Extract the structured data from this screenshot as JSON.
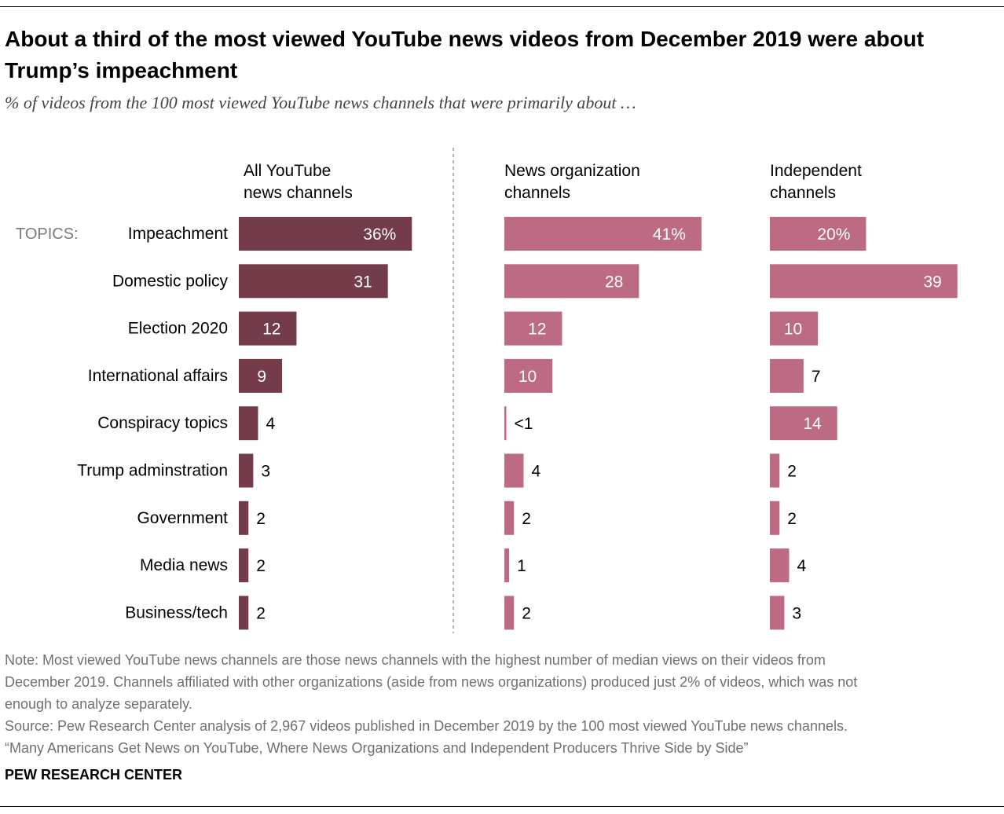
{
  "title": "About a third of the most viewed YouTube news videos from December 2019 were about Trump’s impeachment",
  "subtitle": "% of videos from the 100 most viewed YouTube news channels that were primarily about …",
  "topics_label": "TOPICS:",
  "colors": {
    "all": "#733c48",
    "group": "#bd6a83",
    "divider": "#999999",
    "label_on_bar": "#ffffff"
  },
  "chart_data": {
    "type": "bar",
    "orientation": "horizontal",
    "categories": [
      "Impeachment",
      "Domestic policy",
      "Election 2020",
      "International affairs",
      "Conspiracy topics",
      "Trump adminstration",
      "Government",
      "Media news",
      "Business/tech"
    ],
    "series": [
      {
        "name": "All YouTube news channels",
        "header": [
          "All YouTube",
          "news channels"
        ],
        "values": [
          36,
          31,
          12,
          9,
          4,
          3,
          2,
          2,
          2
        ],
        "labels": [
          "36%",
          "31",
          "12",
          "9",
          "4",
          "3",
          "2",
          "2",
          "2"
        ]
      },
      {
        "name": "News organization channels",
        "header": [
          "News organization",
          "channels"
        ],
        "values": [
          41,
          28,
          12,
          10,
          0.4,
          4,
          2,
          1,
          2
        ],
        "labels": [
          "41%",
          "28",
          "12",
          "10",
          "<1",
          "4",
          "2",
          "1",
          "2"
        ]
      },
      {
        "name": "Independent channels",
        "header": [
          "Independent",
          "channels"
        ],
        "values": [
          20,
          39,
          10,
          7,
          14,
          2,
          2,
          4,
          3
        ],
        "labels": [
          "20%",
          "39",
          "10",
          "7",
          "14",
          "2",
          "2",
          "4",
          "3"
        ]
      }
    ]
  },
  "note": {
    "lines": [
      "Note: Most viewed YouTube news channels are those news channels with the highest number of median views on their videos from",
      "December 2019. Channels affiliated with other organizations (aside from news organizations) produced just 2% of videos, which was not",
      "enough to analyze separately.",
      "Source: Pew Research Center analysis of 2,967 videos published in December 2019 by the 100 most viewed YouTube news channels.",
      "“Many Americans Get News on YouTube, Where News Organizations and Independent Producers Thrive Side by Side”"
    ]
  },
  "brand": "PEW RESEARCH CENTER"
}
